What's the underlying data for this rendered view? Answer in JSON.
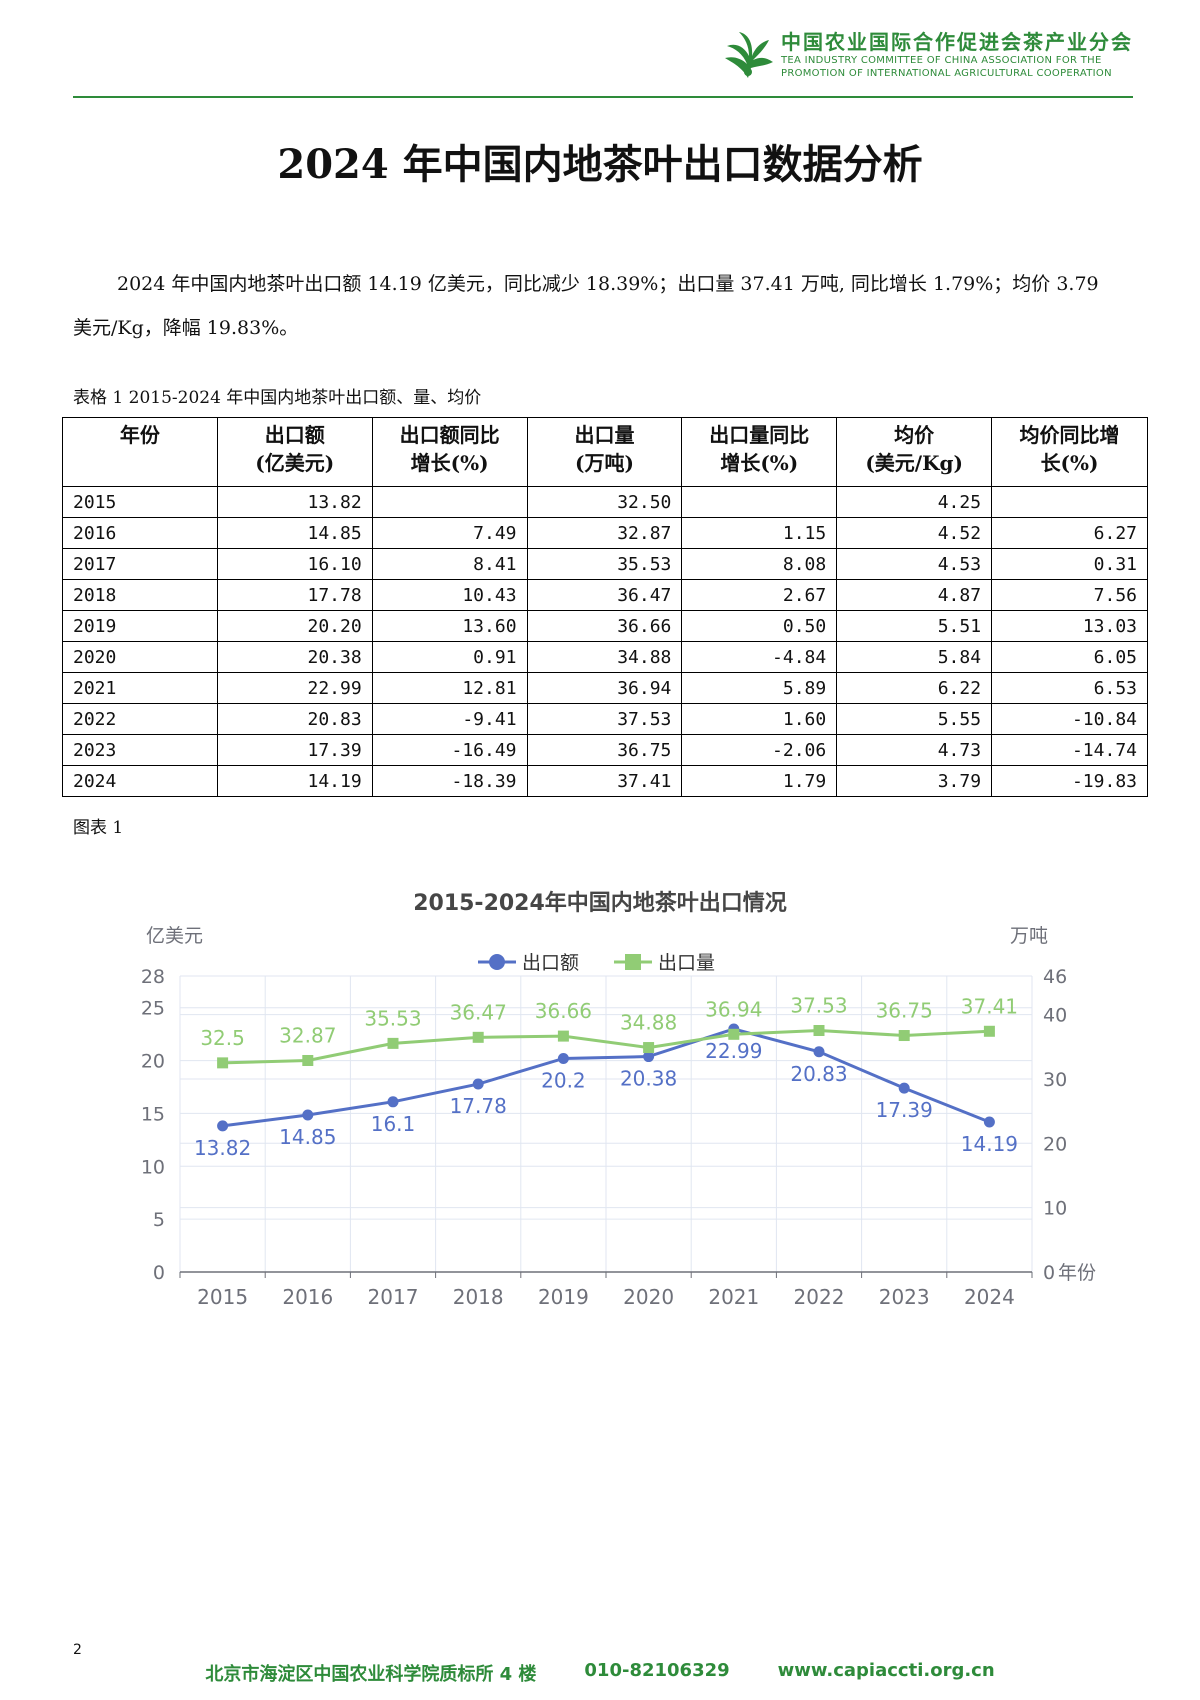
{
  "header": {
    "org_cn": "中国农业国际合作促进会茶产业分会",
    "org_en_line1": "TEA INDUSTRY COMMITTEE OF CHINA ASSOCIATION FOR THE",
    "org_en_line2": "PROMOTION OF INTERNATIONAL AGRICULTURAL COOPERATION",
    "brand_color": "#2e8b3a"
  },
  "title": "2024 年中国内地茶叶出口数据分析",
  "paragraph": "2024 年中国内地茶叶出口额 14.19 亿美元，同比减少 18.39%；出口量 37.41 万吨, 同比增长 1.79%；均价 3.79 美元/Kg，降幅 19.83%。",
  "table": {
    "caption": "表格 1 2015-2024 年中国内地茶叶出口额、量、均价",
    "headers": [
      [
        "年份"
      ],
      [
        "出口额",
        "(亿美元)"
      ],
      [
        "出口额同比",
        "增长(%)"
      ],
      [
        "出口量",
        "(万吨)"
      ],
      [
        "出口量同比",
        "增长(%)"
      ],
      [
        "均价",
        "(美元/Kg)"
      ],
      [
        "均价同比增",
        "长(%)"
      ]
    ],
    "rows": [
      [
        "2015",
        "13.82",
        "",
        "32.50",
        "",
        "4.25",
        ""
      ],
      [
        "2016",
        "14.85",
        "7.49",
        "32.87",
        "1.15",
        "4.52",
        "6.27"
      ],
      [
        "2017",
        "16.10",
        "8.41",
        "35.53",
        "8.08",
        "4.53",
        "0.31"
      ],
      [
        "2018",
        "17.78",
        "10.43",
        "36.47",
        "2.67",
        "4.87",
        "7.56"
      ],
      [
        "2019",
        "20.20",
        "13.60",
        "36.66",
        "0.50",
        "5.51",
        "13.03"
      ],
      [
        "2020",
        "20.38",
        "0.91",
        "34.88",
        "-4.84",
        "5.84",
        "6.05"
      ],
      [
        "2021",
        "22.99",
        "12.81",
        "36.94",
        "5.89",
        "6.22",
        "6.53"
      ],
      [
        "2022",
        "20.83",
        "-9.41",
        "37.53",
        "1.60",
        "5.55",
        "-10.84"
      ],
      [
        "2023",
        "17.39",
        "-16.49",
        "36.75",
        "-2.06",
        "4.73",
        "-14.74"
      ],
      [
        "2024",
        "14.19",
        "-18.39",
        "37.41",
        "1.79",
        "3.79",
        "-19.83"
      ]
    ]
  },
  "figure_caption": "图表 1",
  "chart_data": {
    "type": "line",
    "title": "2015-2024年中国内地茶叶出口情况",
    "categories": [
      "2015",
      "2016",
      "2017",
      "2018",
      "2019",
      "2020",
      "2021",
      "2022",
      "2023",
      "2024"
    ],
    "xlabel": "年份",
    "y_left": {
      "label": "亿美元",
      "ticks": [
        0,
        5,
        10,
        15,
        20,
        25,
        28
      ],
      "range": [
        0,
        28
      ]
    },
    "y_right": {
      "label": "万吨",
      "ticks": [
        0,
        10,
        20,
        30,
        40,
        46
      ],
      "range": [
        0,
        46
      ]
    },
    "grid": true,
    "legend_position": "top-center",
    "series": [
      {
        "name": "出口额",
        "axis": "left",
        "color": "#5470c6",
        "marker": "circle",
        "values": [
          13.82,
          14.85,
          16.1,
          17.78,
          20.2,
          20.38,
          22.99,
          20.83,
          17.39,
          14.19
        ],
        "labels": [
          "13.82",
          "14.85",
          "16.1",
          "17.78",
          "20.2",
          "20.38",
          "22.99",
          "20.83",
          "17.39",
          "14.19"
        ]
      },
      {
        "name": "出口量",
        "axis": "right",
        "color": "#91cc75",
        "marker": "square",
        "values": [
          32.5,
          32.87,
          35.53,
          36.47,
          36.66,
          34.88,
          36.94,
          37.53,
          36.75,
          37.41
        ],
        "labels": [
          "32.5",
          "32.87",
          "35.53",
          "36.47",
          "36.66",
          "34.88",
          "36.94",
          "37.53",
          "36.75",
          "37.41"
        ]
      }
    ]
  },
  "page_number": "2",
  "footer": {
    "address": "北京市海淀区中国农业科学院质标所 4 楼",
    "phone": "010-82106329",
    "website": "www.capiaccti.org.cn"
  }
}
